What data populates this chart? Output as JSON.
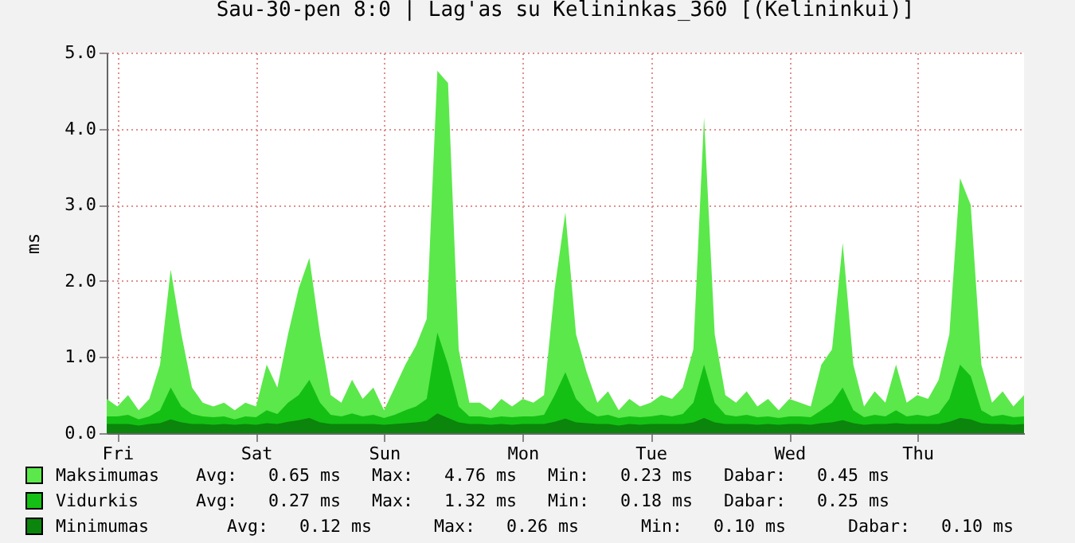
{
  "chart_data": {
    "type": "area",
    "title": "Sau-30-pen 8:0 | Lag'as su Kelininkas_360 [(Kelininkui)]",
    "ylabel": "ms",
    "categories": [
      null,
      "Fri",
      null,
      null,
      null,
      null,
      null,
      null,
      null,
      null,
      null,
      null,
      null,
      null,
      "Sat",
      null,
      null,
      null,
      null,
      null,
      null,
      null,
      null,
      null,
      null,
      null,
      "Sun",
      null,
      null,
      null,
      null,
      null,
      null,
      null,
      null,
      null,
      null,
      null,
      null,
      "Mon",
      null,
      null,
      null,
      null,
      null,
      null,
      null,
      null,
      null,
      null,
      null,
      "Tue",
      null,
      null,
      null,
      null,
      null,
      null,
      null,
      null,
      null,
      null,
      null,
      null,
      "Wed",
      null,
      null,
      null,
      null,
      null,
      null,
      null,
      null,
      null,
      null,
      null,
      "Thu",
      null,
      null,
      null,
      null,
      null,
      null,
      null,
      null,
      null,
      null
    ],
    "series": [
      {
        "name": "Maksimumas",
        "color": "#5be84b",
        "values": [
          0.45,
          0.35,
          0.5,
          0.3,
          0.45,
          0.9,
          2.15,
          1.3,
          0.6,
          0.4,
          0.35,
          0.4,
          0.3,
          0.4,
          0.35,
          0.9,
          0.6,
          1.3,
          1.9,
          2.3,
          1.3,
          0.5,
          0.4,
          0.7,
          0.45,
          0.6,
          0.3,
          0.6,
          0.9,
          1.15,
          1.5,
          4.76,
          4.6,
          1.1,
          0.4,
          0.4,
          0.3,
          0.45,
          0.35,
          0.45,
          0.4,
          0.5,
          1.9,
          2.9,
          1.3,
          0.8,
          0.4,
          0.55,
          0.3,
          0.45,
          0.35,
          0.4,
          0.5,
          0.45,
          0.6,
          1.1,
          4.15,
          1.3,
          0.5,
          0.4,
          0.55,
          0.35,
          0.45,
          0.3,
          0.45,
          0.4,
          0.35,
          0.9,
          1.1,
          2.5,
          0.9,
          0.35,
          0.55,
          0.4,
          0.9,
          0.4,
          0.5,
          0.45,
          0.7,
          1.3,
          3.35,
          3.0,
          0.9,
          0.4,
          0.55,
          0.35,
          0.5
        ]
      },
      {
        "name": "Vidurkis",
        "color": "#14c014",
        "values": [
          0.22,
          0.22,
          0.24,
          0.18,
          0.22,
          0.3,
          0.6,
          0.35,
          0.25,
          0.22,
          0.21,
          0.22,
          0.18,
          0.22,
          0.21,
          0.3,
          0.25,
          0.4,
          0.5,
          0.7,
          0.4,
          0.24,
          0.22,
          0.26,
          0.22,
          0.24,
          0.2,
          0.24,
          0.3,
          0.35,
          0.45,
          1.32,
          0.9,
          0.35,
          0.22,
          0.22,
          0.2,
          0.22,
          0.21,
          0.22,
          0.22,
          0.24,
          0.5,
          0.8,
          0.45,
          0.3,
          0.22,
          0.24,
          0.2,
          0.22,
          0.21,
          0.22,
          0.24,
          0.22,
          0.25,
          0.4,
          0.9,
          0.4,
          0.24,
          0.22,
          0.24,
          0.21,
          0.22,
          0.2,
          0.22,
          0.22,
          0.21,
          0.3,
          0.4,
          0.6,
          0.3,
          0.21,
          0.24,
          0.22,
          0.3,
          0.22,
          0.24,
          0.22,
          0.26,
          0.45,
          0.9,
          0.75,
          0.3,
          0.22,
          0.24,
          0.21,
          0.22
        ]
      },
      {
        "name": "Minimumas",
        "color": "#0b850b",
        "values": [
          0.12,
          0.12,
          0.12,
          0.1,
          0.12,
          0.13,
          0.18,
          0.14,
          0.12,
          0.12,
          0.11,
          0.12,
          0.11,
          0.12,
          0.11,
          0.13,
          0.12,
          0.15,
          0.17,
          0.2,
          0.14,
          0.12,
          0.12,
          0.12,
          0.12,
          0.12,
          0.11,
          0.12,
          0.13,
          0.14,
          0.16,
          0.26,
          0.2,
          0.14,
          0.12,
          0.12,
          0.11,
          0.12,
          0.11,
          0.12,
          0.12,
          0.12,
          0.15,
          0.19,
          0.14,
          0.13,
          0.12,
          0.12,
          0.1,
          0.12,
          0.11,
          0.12,
          0.12,
          0.12,
          0.12,
          0.14,
          0.2,
          0.14,
          0.12,
          0.12,
          0.12,
          0.11,
          0.12,
          0.11,
          0.12,
          0.12,
          0.11,
          0.13,
          0.14,
          0.17,
          0.13,
          0.11,
          0.12,
          0.12,
          0.13,
          0.12,
          0.12,
          0.12,
          0.12,
          0.15,
          0.2,
          0.18,
          0.13,
          0.12,
          0.12,
          0.11,
          0.12
        ]
      }
    ],
    "ylim": [
      0,
      5
    ],
    "yticks": [
      {
        "value": 0,
        "label": "0.0"
      },
      {
        "value": 1,
        "label": "1.0"
      },
      {
        "value": 2,
        "label": "2.0"
      },
      {
        "value": 3,
        "label": "3.0"
      },
      {
        "value": 4,
        "label": "4.0"
      },
      {
        "value": 5,
        "label": "5.0"
      }
    ],
    "grid": true,
    "legend": "bottom",
    "annotations": [
      "Avg:   0.65 ms   Max:   4.76 ms   Min:   0.23 ms   Dabar:   0.45 ms",
      "Avg:   0.27 ms   Max:   1.32 ms   Min:   0.18 ms   Dabar:   0.25 ms",
      "   Avg:   0.12 ms      Max:   0.26 ms      Min:   0.10 ms      Dabar:   0.10 ms"
    ]
  }
}
